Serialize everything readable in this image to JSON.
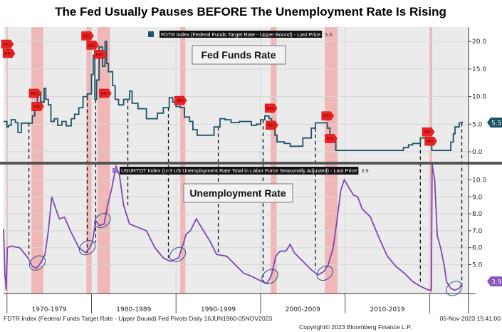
{
  "title": "The Fed Usually Pauses BEFORE The Unemployment Rate Is Rising",
  "footer": {
    "description": "FDTR Index (Federal Funds Target Rate - Upper Bound) Fed Pivots  Daily 16JUN1960-05NOV2023",
    "copyright": "Copyright© 2023 Bloomberg Finance L.P.",
    "timestamp": "05-Nov-2023 15:41:00"
  },
  "colors": {
    "fed": "#1d5366",
    "unemployment": "#7e47b3",
    "recession": "#f2a5a5",
    "background": "#ebebeb",
    "rec_marker": "#ee2222",
    "ellipse": "#2b4f8e",
    "pivot_marker": "#e0a030"
  },
  "chart_data": [
    {
      "type": "line",
      "panel": "top",
      "box_label": "Fed Funds Rate",
      "legend": {
        "text": "FDTR Index (Federal Funds Target Rate - Upper Bound) - Last Price",
        "value": "5.5"
      },
      "last_value": "5.5",
      "ylim": [
        -1.8,
        22.6
      ],
      "yticks": [
        0,
        5,
        10,
        15,
        20
      ],
      "ytick_labels": [
        "0.0",
        "5.0",
        "10.0",
        "15.0",
        "20.0"
      ],
      "points": [
        [
          1969.6,
          5.5
        ],
        [
          1969.8,
          5.5
        ],
        [
          1970.0,
          4.5
        ],
        [
          1970.2,
          4.8
        ],
        [
          1970.5,
          5.8
        ],
        [
          1971.0,
          5.3
        ],
        [
          1971.3,
          3.5
        ],
        [
          1971.7,
          5.2
        ],
        [
          1972.5,
          5.2
        ],
        [
          1973.0,
          6.5
        ],
        [
          1973.3,
          8.5
        ],
        [
          1973.6,
          10.8
        ],
        [
          1974.0,
          9.0
        ],
        [
          1974.4,
          11.5
        ],
        [
          1974.6,
          9.5
        ],
        [
          1974.9,
          8.5
        ],
        [
          1975.2,
          5.5
        ],
        [
          1975.6,
          6.0
        ],
        [
          1976.0,
          4.8
        ],
        [
          1976.5,
          5.5
        ],
        [
          1977.0,
          4.7
        ],
        [
          1977.6,
          6.0
        ],
        [
          1978.0,
          6.8
        ],
        [
          1978.5,
          8.0
        ],
        [
          1979.0,
          10.0
        ],
        [
          1979.5,
          10.5
        ],
        [
          1980.0,
          14.0
        ],
        [
          1980.2,
          17.5
        ],
        [
          1980.4,
          9.5
        ],
        [
          1980.6,
          13.0
        ],
        [
          1980.9,
          19.0
        ],
        [
          1981.1,
          19.0
        ],
        [
          1981.3,
          15.5
        ],
        [
          1981.6,
          20.0
        ],
        [
          1981.8,
          16.0
        ],
        [
          1982.0,
          14.5
        ],
        [
          1982.5,
          12.0
        ],
        [
          1982.8,
          9.5
        ],
        [
          1983.2,
          8.5
        ],
        [
          1983.8,
          9.5
        ],
        [
          1984.5,
          11.0
        ],
        [
          1984.8,
          8.8
        ],
        [
          1985.5,
          7.8
        ],
        [
          1986.5,
          6.0
        ],
        [
          1987.0,
          6.0
        ],
        [
          1987.8,
          7.0
        ],
        [
          1988.5,
          8.0
        ],
        [
          1989.2,
          9.8
        ],
        [
          1989.6,
          9.0
        ],
        [
          1990.0,
          8.2
        ],
        [
          1990.5,
          8.0
        ],
        [
          1991.0,
          6.3
        ],
        [
          1991.6,
          5.5
        ],
        [
          1992.0,
          4.0
        ],
        [
          1992.5,
          3.0
        ],
        [
          1994.0,
          3.0
        ],
        [
          1994.5,
          4.5
        ],
        [
          1995.2,
          6.0
        ],
        [
          1995.8,
          5.8
        ],
        [
          1996.5,
          5.3
        ],
        [
          1997.5,
          5.5
        ],
        [
          1998.5,
          5.5
        ],
        [
          1998.9,
          4.8
        ],
        [
          1999.5,
          5.0
        ],
        [
          2000.0,
          5.8
        ],
        [
          2000.5,
          6.5
        ],
        [
          2001.0,
          6.0
        ],
        [
          2001.3,
          4.5
        ],
        [
          2001.7,
          3.0
        ],
        [
          2001.95,
          1.8
        ],
        [
          2002.8,
          1.5
        ],
        [
          2003.5,
          1.0
        ],
        [
          2004.4,
          1.0
        ],
        [
          2005.0,
          2.5
        ],
        [
          2006.0,
          4.3
        ],
        [
          2006.5,
          5.25
        ],
        [
          2007.6,
          5.25
        ],
        [
          2007.9,
          4.3
        ],
        [
          2008.2,
          2.5
        ],
        [
          2008.9,
          0.25
        ],
        [
          2015.9,
          0.25
        ],
        [
          2016.9,
          0.75
        ],
        [
          2017.5,
          1.25
        ],
        [
          2018.0,
          1.5
        ],
        [
          2018.9,
          2.5
        ],
        [
          2019.5,
          2.5
        ],
        [
          2019.9,
          1.75
        ],
        [
          2020.15,
          1.75
        ],
        [
          2020.25,
          0.25
        ],
        [
          2022.2,
          0.25
        ],
        [
          2022.5,
          1.75
        ],
        [
          2022.8,
          3.25
        ],
        [
          2023.0,
          4.5
        ],
        [
          2023.5,
          5.25
        ],
        [
          2023.85,
          5.5
        ]
      ]
    },
    {
      "type": "line",
      "panel": "bottom",
      "box_label": "Unemployment Rate",
      "legend": {
        "text": "USURTOT Index (U-3 US Unemployment Rate Total in Labor Force Seasonally Adjusted) - Last Price",
        "value": "3.9"
      },
      "last_value": "3.9",
      "ylim": [
        3.3,
        10.9
      ],
      "yticks": [
        5,
        6,
        7,
        8,
        9,
        10
      ],
      "ytick_labels": [
        "5.0",
        "6.0",
        "7.0",
        "8.0",
        "9.0",
        "10.0"
      ],
      "points": [
        [
          1969.6,
          7.1
        ],
        [
          1969.75,
          4.5
        ],
        [
          1969.9,
          3.5
        ],
        [
          1970.05,
          6.0
        ],
        [
          1970.5,
          6.1
        ],
        [
          1971.5,
          6.0
        ],
        [
          1972.5,
          5.4
        ],
        [
          1973.0,
          4.9
        ],
        [
          1973.5,
          4.8
        ],
        [
          1974.0,
          5.1
        ],
        [
          1974.5,
          5.6
        ],
        [
          1974.9,
          7.0
        ],
        [
          1975.3,
          9.0
        ],
        [
          1975.7,
          8.4
        ],
        [
          1976.2,
          7.7
        ],
        [
          1976.8,
          7.8
        ],
        [
          1977.5,
          7.0
        ],
        [
          1978.5,
          6.0
        ],
        [
          1979.3,
          5.7
        ],
        [
          1979.8,
          6.0
        ],
        [
          1980.1,
          6.3
        ],
        [
          1980.5,
          7.6
        ],
        [
          1980.9,
          7.3
        ],
        [
          1981.5,
          7.4
        ],
        [
          1981.9,
          8.5
        ],
        [
          1982.4,
          9.5
        ],
        [
          1982.9,
          10.8
        ],
        [
          1983.3,
          10.3
        ],
        [
          1983.8,
          8.5
        ],
        [
          1984.5,
          7.4
        ],
        [
          1985.5,
          7.2
        ],
        [
          1986.5,
          7.0
        ],
        [
          1987.5,
          6.0
        ],
        [
          1988.5,
          5.4
        ],
        [
          1989.3,
          5.2
        ],
        [
          1989.8,
          5.3
        ],
        [
          1990.3,
          5.4
        ],
        [
          1990.7,
          6.0
        ],
        [
          1991.2,
          6.8
        ],
        [
          1991.7,
          7.0
        ],
        [
          1992.4,
          7.7
        ],
        [
          1993.0,
          7.2
        ],
        [
          1994.0,
          6.4
        ],
        [
          1994.8,
          5.6
        ],
        [
          1996.0,
          5.5
        ],
        [
          1997.0,
          5.0
        ],
        [
          1998.0,
          4.5
        ],
        [
          1999.0,
          4.3
        ],
        [
          2000.2,
          4.0
        ],
        [
          2000.8,
          3.9
        ],
        [
          2001.3,
          4.4
        ],
        [
          2001.8,
          5.5
        ],
        [
          2002.3,
          5.8
        ],
        [
          2003.0,
          5.8
        ],
        [
          2003.5,
          6.2
        ],
        [
          2004.0,
          5.7
        ],
        [
          2005.0,
          5.2
        ],
        [
          2006.0,
          4.7
        ],
        [
          2006.8,
          4.4
        ],
        [
          2007.5,
          4.6
        ],
        [
          2008.0,
          5.0
        ],
        [
          2008.6,
          6.0
        ],
        [
          2009.0,
          7.5
        ],
        [
          2009.5,
          9.4
        ],
        [
          2009.9,
          10.0
        ],
        [
          2010.5,
          9.5
        ],
        [
          2011.0,
          9.1
        ],
        [
          2011.5,
          9.0
        ],
        [
          2012.0,
          8.3
        ],
        [
          2013.0,
          7.8
        ],
        [
          2014.0,
          6.6
        ],
        [
          2015.0,
          5.5
        ],
        [
          2016.0,
          4.9
        ],
        [
          2017.0,
          4.5
        ],
        [
          2018.0,
          4.0
        ],
        [
          2019.0,
          3.7
        ],
        [
          2019.9,
          3.5
        ],
        [
          2020.2,
          3.5
        ],
        [
          2020.3,
          14.7
        ],
        [
          2020.6,
          10.0
        ],
        [
          2020.9,
          6.7
        ],
        [
          2021.3,
          6.0
        ],
        [
          2021.7,
          5.0
        ],
        [
          2022.0,
          4.0
        ],
        [
          2022.5,
          3.6
        ],
        [
          2023.0,
          3.5
        ],
        [
          2023.5,
          3.6
        ],
        [
          2023.85,
          3.9
        ]
      ]
    }
  ],
  "x_axis": {
    "range": [
      1969.6,
      2024.6
    ],
    "ticks": [
      1970,
      1980,
      1990,
      2000,
      2010,
      2020
    ],
    "labels": [
      {
        "year": 1975,
        "text": "1970-1979"
      },
      {
        "year": 1985,
        "text": "1980-1989"
      },
      {
        "year": 1995,
        "text": "1990-1999"
      },
      {
        "year": 2005,
        "text": "2000-2009"
      },
      {
        "year": 2015,
        "text": "2010-2019"
      }
    ]
  },
  "recessions": [
    [
      1969.92,
      1970.1
    ],
    [
      1972.9,
      1974.3
    ],
    [
      1979.4,
      1980.05
    ],
    [
      1980.7,
      1982.2
    ],
    [
      1990.5,
      1991.1
    ],
    [
      2001.2,
      2001.9
    ],
    [
      2007.6,
      2009.1
    ],
    [
      2020.0,
      2020.3
    ]
  ],
  "rec_marker_label": "REC",
  "rec_markers": [
    [
      1969.95,
      19.5
    ],
    [
      1970.2,
      19.5
    ],
    [
      1973.3,
      10.6
    ],
    [
      1973.6,
      8.2
    ],
    [
      1979.5,
      21.0
    ],
    [
      1980.1,
      21.0
    ],
    [
      1981.0,
      21.0
    ],
    [
      1981.6,
      10.6
    ],
    [
      1990.5,
      9.3
    ],
    [
      2001.2,
      7.9
    ],
    [
      2001.3,
      6.5
    ],
    [
      2007.9,
      6.5
    ],
    [
      2008.3,
      2.4
    ],
    [
      2019.8,
      3.6
    ],
    [
      2020.1,
      3.6
    ]
  ],
  "pivots": [
    1972.6,
    1979.5,
    1980.5,
    1984.3,
    1989.1,
    1995.0,
    2000.3,
    2006.5,
    2018.9,
    2023.8
  ],
  "ellipses": [
    [
      1973.6,
      5.1
    ],
    [
      1979.5,
      6.0
    ],
    [
      1981.3,
      7.6
    ],
    [
      1990.2,
      5.6
    ],
    [
      2001.1,
      4.3
    ],
    [
      2007.6,
      4.5
    ],
    [
      2022.9,
      3.6
    ]
  ]
}
